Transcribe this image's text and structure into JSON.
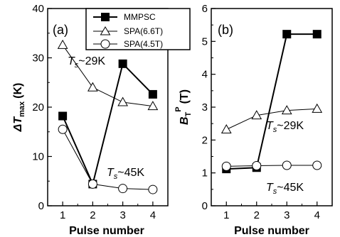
{
  "chart_data": [
    {
      "type": "line",
      "panel_label": "(a)",
      "xlabel": "Pulse number",
      "ylabel_main": "ΔT",
      "ylabel_sub": "max",
      "ylabel_unit": "(K)",
      "x": [
        1,
        2,
        3,
        4
      ],
      "xticks": [
        "1",
        "2",
        "3",
        "4"
      ],
      "xlim": [
        0.5,
        4.5
      ],
      "ylim": [
        0,
        40
      ],
      "yticks": [
        "0",
        "10",
        "20",
        "30",
        "40"
      ],
      "series": [
        {
          "name": "MMPSC",
          "marker": "filled-square",
          "values": [
            18.2,
            4.4,
            28.8,
            22.6
          ]
        },
        {
          "name": "SPA(6.6T)",
          "marker": "open-triangle",
          "values": [
            32.6,
            24.0,
            21.0,
            20.2
          ]
        },
        {
          "name": "SPA(4.5T)",
          "marker": "open-circle",
          "values": [
            15.5,
            4.4,
            3.5,
            3.3
          ]
        }
      ],
      "annotations": [
        {
          "main": "T",
          "sub": "s",
          "rest": "~29K"
        },
        {
          "main": "T",
          "sub": "s",
          "rest": "~45K"
        }
      ],
      "legend": {
        "placement": "top-right",
        "entries": [
          "MMPSC",
          "SPA(6.6T)",
          "SPA(4.5T)"
        ]
      }
    },
    {
      "type": "line",
      "panel_label": "(b)",
      "xlabel": "Pulse number",
      "ylabel_main": "B",
      "ylabel_sub": "T",
      "ylabel_sup": "P",
      "ylabel_unit": "(T)",
      "x": [
        1,
        2,
        3,
        4
      ],
      "xticks": [
        "1",
        "2",
        "3",
        "4"
      ],
      "xlim": [
        0.5,
        4.5
      ],
      "ylim": [
        0,
        6
      ],
      "yticks": [
        "0",
        "1",
        "2",
        "3",
        "4",
        "5",
        "6"
      ],
      "series": [
        {
          "name": "MMPSC",
          "marker": "filled-square",
          "values": [
            1.12,
            1.16,
            5.22,
            5.22
          ]
        },
        {
          "name": "SPA(6.6T)",
          "marker": "open-triangle",
          "values": [
            2.32,
            2.75,
            2.9,
            2.95
          ]
        },
        {
          "name": "SPA(4.5T)",
          "marker": "open-circle",
          "values": [
            1.2,
            1.22,
            1.23,
            1.23
          ]
        }
      ],
      "annotations": [
        {
          "main": "T",
          "sub": "s",
          "rest": "~29K"
        },
        {
          "main": "T",
          "sub": "s",
          "rest": "~45K"
        }
      ]
    }
  ]
}
